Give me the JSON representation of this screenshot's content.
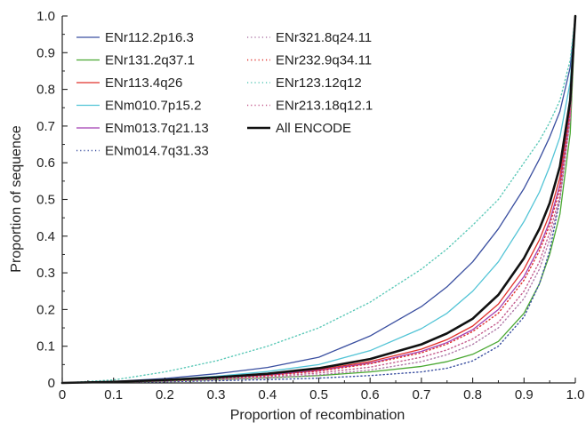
{
  "chart_data": {
    "type": "line",
    "xlabel": "Proportion of recombination",
    "ylabel": "Proportion of sequence",
    "xlim": [
      0,
      1
    ],
    "ylim": [
      0,
      1
    ],
    "x_ticks": [
      "0",
      "0.1",
      "0.2",
      "0.3",
      "0.4",
      "0.5",
      "0.6",
      "0.7",
      "0.8",
      "0.9",
      "1.0"
    ],
    "y_ticks": [
      "0",
      "0.1",
      "0.2",
      "0.3",
      "0.4",
      "0.5",
      "0.6",
      "0.7",
      "0.8",
      "0.9",
      "1.0"
    ],
    "grid": false,
    "legend_position": "top-left, two columns",
    "series": [
      {
        "name": "ENr112.2p16.3",
        "color": "#3a4fa0",
        "style": "solid",
        "x": [
          0,
          0.1,
          0.2,
          0.3,
          0.4,
          0.5,
          0.6,
          0.7,
          0.75,
          0.8,
          0.85,
          0.9,
          0.93,
          0.95,
          0.97,
          0.99,
          1.0
        ],
        "y": [
          0,
          0.004,
          0.012,
          0.025,
          0.042,
          0.07,
          0.128,
          0.208,
          0.262,
          0.33,
          0.42,
          0.53,
          0.61,
          0.67,
          0.74,
          0.86,
          1.0
        ]
      },
      {
        "name": "ENr131.2q37.1",
        "color": "#4aa832",
        "style": "solid",
        "x": [
          0,
          0.1,
          0.2,
          0.3,
          0.4,
          0.5,
          0.6,
          0.7,
          0.75,
          0.8,
          0.85,
          0.9,
          0.93,
          0.95,
          0.97,
          0.99,
          1.0
        ],
        "y": [
          0,
          0.002,
          0.005,
          0.009,
          0.014,
          0.02,
          0.03,
          0.045,
          0.058,
          0.078,
          0.113,
          0.19,
          0.27,
          0.35,
          0.46,
          0.68,
          1.0
        ]
      },
      {
        "name": "ENr113.4q26",
        "color": "#e0302a",
        "style": "solid",
        "x": [
          0,
          0.1,
          0.2,
          0.3,
          0.4,
          0.5,
          0.6,
          0.7,
          0.75,
          0.8,
          0.85,
          0.9,
          0.93,
          0.95,
          0.97,
          0.99,
          1.0
        ],
        "y": [
          0,
          0.003,
          0.008,
          0.014,
          0.022,
          0.036,
          0.058,
          0.092,
          0.118,
          0.155,
          0.215,
          0.31,
          0.39,
          0.46,
          0.56,
          0.75,
          1.0
        ]
      },
      {
        "name": "ENm010.7p15.2",
        "color": "#52c4d6",
        "style": "solid",
        "x": [
          0,
          0.1,
          0.2,
          0.3,
          0.4,
          0.5,
          0.6,
          0.7,
          0.75,
          0.8,
          0.85,
          0.9,
          0.93,
          0.95,
          0.97,
          0.99,
          1.0
        ],
        "y": [
          0,
          0.003,
          0.009,
          0.018,
          0.031,
          0.05,
          0.088,
          0.148,
          0.19,
          0.25,
          0.33,
          0.44,
          0.52,
          0.59,
          0.67,
          0.82,
          1.0
        ]
      },
      {
        "name": "ENm013.7q21.13",
        "color": "#a23fb2",
        "style": "solid",
        "x": [
          0,
          0.1,
          0.2,
          0.3,
          0.4,
          0.5,
          0.6,
          0.7,
          0.75,
          0.8,
          0.85,
          0.9,
          0.93,
          0.95,
          0.97,
          0.99,
          1.0
        ],
        "y": [
          0,
          0.003,
          0.007,
          0.013,
          0.021,
          0.034,
          0.054,
          0.086,
          0.11,
          0.145,
          0.2,
          0.29,
          0.37,
          0.44,
          0.54,
          0.74,
          1.0
        ]
      },
      {
        "name": "ENm014.7q31.33",
        "color": "#3a4fa0",
        "style": "dotted",
        "x": [
          0,
          0.1,
          0.2,
          0.3,
          0.4,
          0.5,
          0.6,
          0.7,
          0.75,
          0.8,
          0.85,
          0.9,
          0.93,
          0.95,
          0.97,
          0.99,
          1.0
        ],
        "y": [
          0,
          0.001,
          0.003,
          0.006,
          0.009,
          0.013,
          0.02,
          0.03,
          0.04,
          0.06,
          0.1,
          0.18,
          0.27,
          0.36,
          0.5,
          0.72,
          1.0
        ]
      },
      {
        "name": "ENr321.8q24.11",
        "color": "#b07aa8",
        "style": "dotted",
        "x": [
          0,
          0.1,
          0.2,
          0.3,
          0.4,
          0.5,
          0.6,
          0.7,
          0.75,
          0.8,
          0.85,
          0.9,
          0.93,
          0.95,
          0.97,
          0.99,
          1.0
        ],
        "y": [
          0,
          0.002,
          0.005,
          0.009,
          0.014,
          0.022,
          0.035,
          0.058,
          0.077,
          0.105,
          0.15,
          0.23,
          0.31,
          0.39,
          0.5,
          0.72,
          1.0
        ]
      },
      {
        "name": "ENr232.9q34.11",
        "color": "#e0302a",
        "style": "dotted",
        "x": [
          0,
          0.1,
          0.2,
          0.3,
          0.4,
          0.5,
          0.6,
          0.7,
          0.75,
          0.8,
          0.85,
          0.9,
          0.93,
          0.95,
          0.97,
          0.99,
          1.0
        ],
        "y": [
          0,
          0.002,
          0.006,
          0.012,
          0.02,
          0.032,
          0.052,
          0.082,
          0.106,
          0.14,
          0.19,
          0.28,
          0.36,
          0.43,
          0.53,
          0.74,
          1.0
        ]
      },
      {
        "name": "ENr123.12q12",
        "color": "#5cc9b8",
        "style": "dotted",
        "x": [
          0,
          0.1,
          0.2,
          0.3,
          0.4,
          0.5,
          0.6,
          0.7,
          0.75,
          0.8,
          0.85,
          0.9,
          0.93,
          0.95,
          0.97,
          0.99,
          1.0
        ],
        "y": [
          0,
          0.008,
          0.03,
          0.06,
          0.1,
          0.15,
          0.22,
          0.31,
          0.365,
          0.43,
          0.5,
          0.6,
          0.66,
          0.71,
          0.77,
          0.88,
          1.0
        ]
      },
      {
        "name": "ENr213.18q12.1",
        "color": "#c45a8c",
        "style": "dotted",
        "x": [
          0,
          0.1,
          0.2,
          0.3,
          0.4,
          0.5,
          0.6,
          0.7,
          0.75,
          0.8,
          0.85,
          0.9,
          0.93,
          0.95,
          0.97,
          0.99,
          1.0
        ],
        "y": [
          0,
          0.002,
          0.005,
          0.01,
          0.017,
          0.027,
          0.043,
          0.07,
          0.09,
          0.12,
          0.165,
          0.25,
          0.33,
          0.41,
          0.51,
          0.72,
          1.0
        ]
      },
      {
        "name": "All ENCODE",
        "color": "#111111",
        "style": "bold",
        "x": [
          0,
          0.1,
          0.2,
          0.3,
          0.4,
          0.5,
          0.6,
          0.7,
          0.75,
          0.8,
          0.85,
          0.9,
          0.93,
          0.95,
          0.97,
          0.99,
          1.0
        ],
        "y": [
          0,
          0.003,
          0.008,
          0.015,
          0.025,
          0.04,
          0.065,
          0.105,
          0.135,
          0.175,
          0.24,
          0.34,
          0.42,
          0.49,
          0.59,
          0.77,
          1.0
        ]
      }
    ]
  }
}
